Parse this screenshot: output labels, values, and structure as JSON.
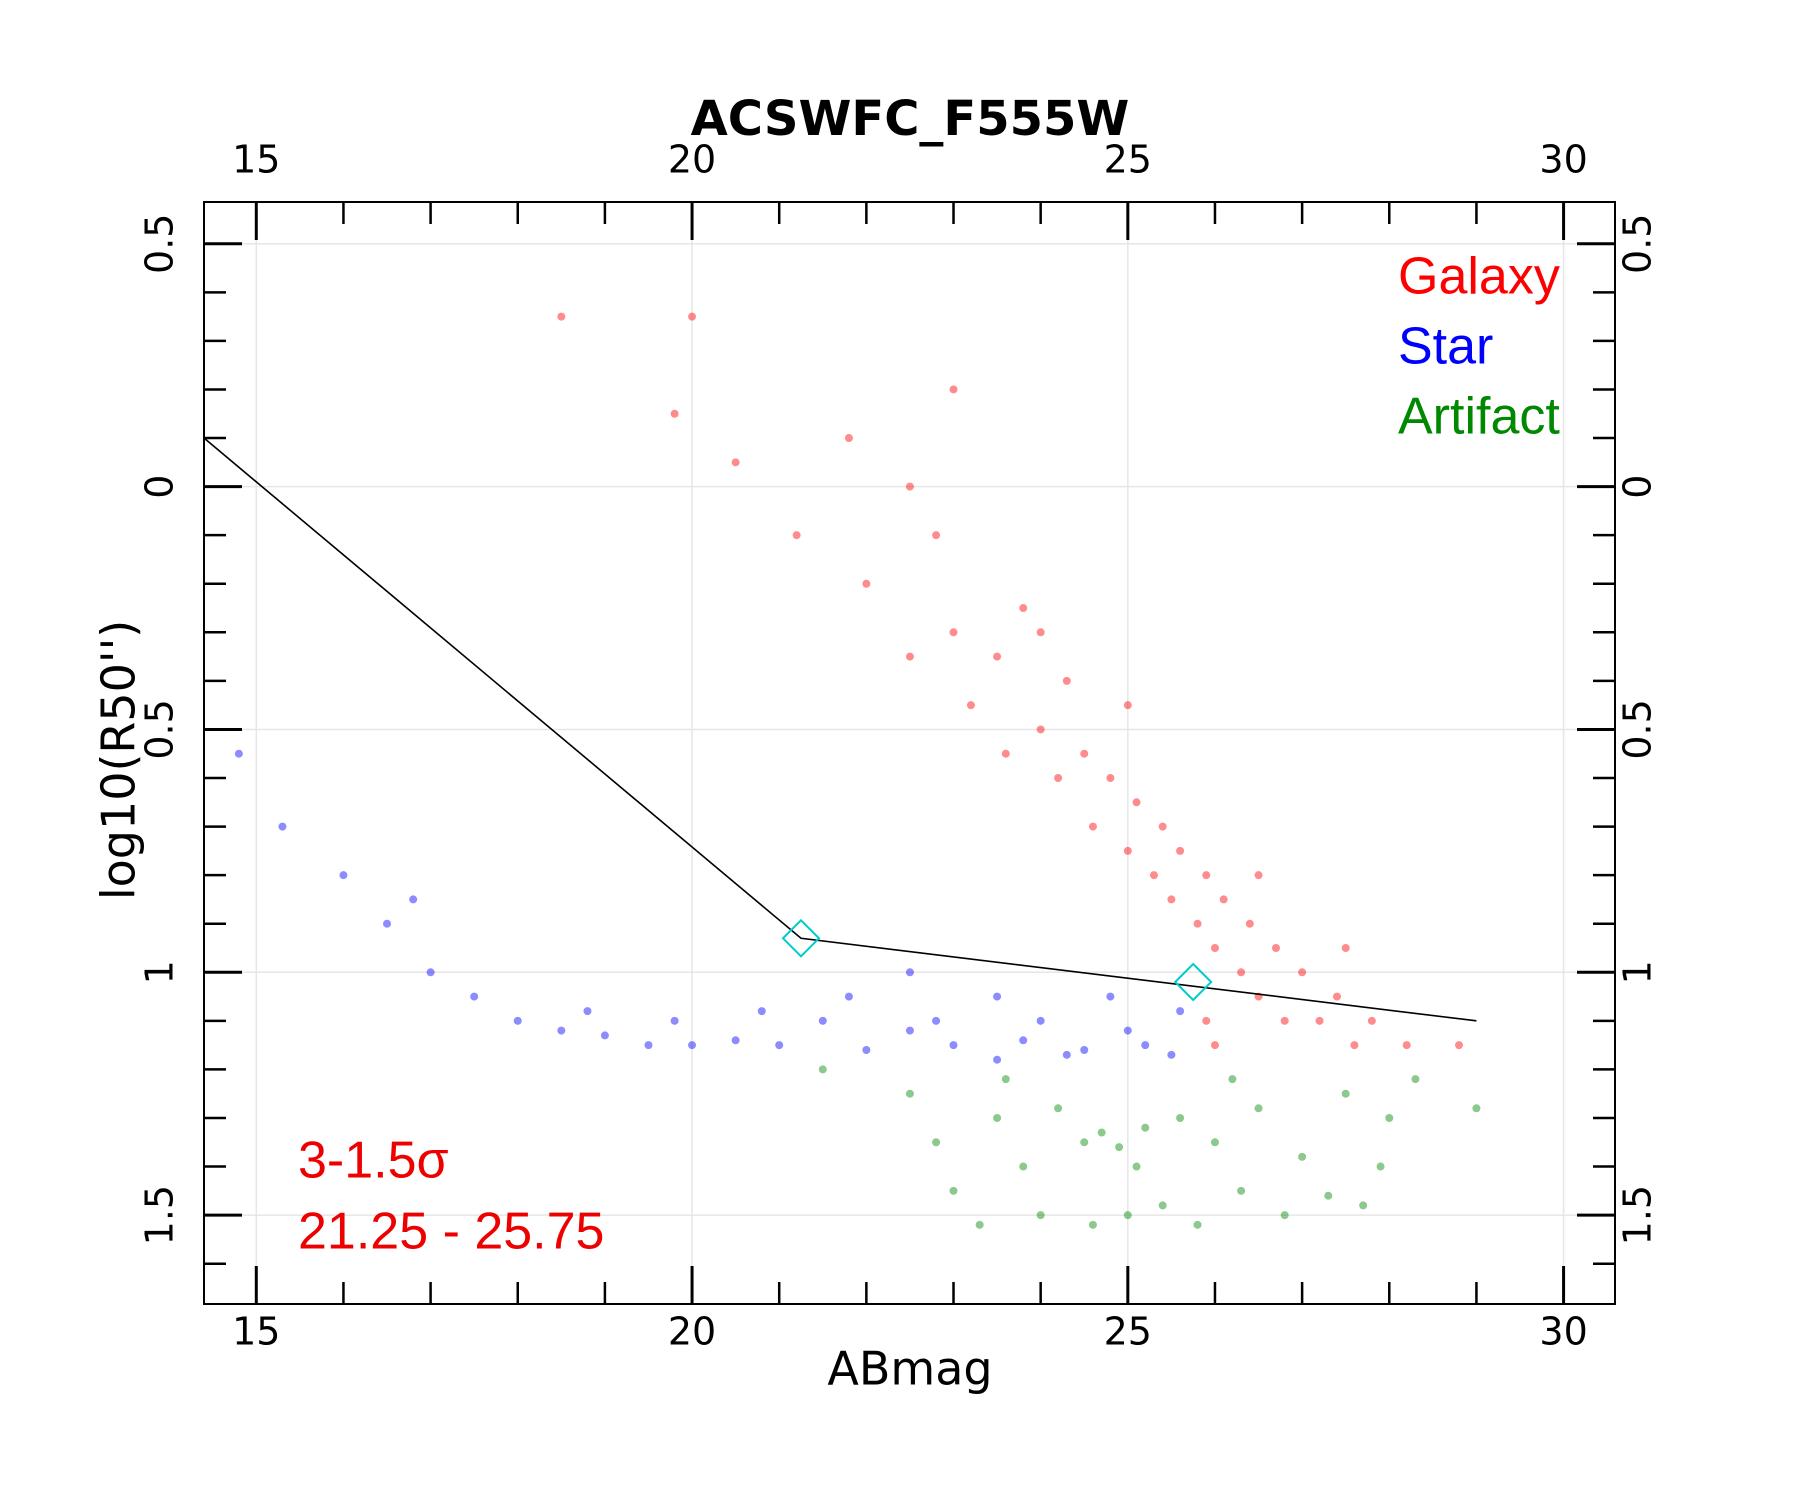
{
  "chart_data": {
    "type": "scatter",
    "title": "ACSWFC_F555W",
    "x_label": "ABmag",
    "y_label": "log10(R50'')",
    "xlim": [
      14.4,
      30.59
    ],
    "ylim": [
      -1.683,
      0.586
    ],
    "xticks": [
      15,
      20,
      25,
      30
    ],
    "yticks": [
      {
        "value": 0.5,
        "label": "0.5"
      },
      0,
      {
        "value": -0.5,
        "label": "0.5"
      },
      {
        "value": -1,
        "label": "1"
      },
      {
        "value": -1.5,
        "label": "1.5"
      }
    ],
    "xticks_minor": [
      16,
      17,
      18,
      19,
      21,
      22,
      23,
      24,
      26,
      27,
      28,
      29
    ],
    "yticks_minor": [
      0.4,
      0.3,
      0.2,
      0.1,
      -0.1,
      -0.2,
      -0.3,
      -0.4,
      -0.6,
      -0.7,
      -0.8,
      -0.9,
      -1.1,
      -1.2,
      -1.3,
      -1.4,
      -1.6
    ],
    "grid": true,
    "legend_position": "upper right",
    "series": [
      {
        "name": "Galaxy",
        "color": "#ff0000",
        "x": [
          18.5,
          19.8,
          20.5,
          21.2,
          21.8,
          22.0,
          22.5,
          22.8,
          23.0,
          23.2,
          23.5,
          23.6,
          23.8,
          24.0,
          24.2,
          24.3,
          24.5,
          24.6,
          24.8,
          25.0,
          25.1,
          25.3,
          25.4,
          25.5,
          25.6,
          25.8,
          25.9,
          26.0,
          26.1,
          26.3,
          26.4,
          26.5,
          26.7,
          26.8,
          27.0,
          27.2,
          27.4,
          27.6,
          27.8,
          28.2,
          28.8,
          26.0,
          25.9,
          24.0,
          22.5,
          23.0,
          25.0,
          26.5,
          27.5,
          20.0
        ],
        "y": [
          0.35,
          0.15,
          0.05,
          -0.1,
          0.1,
          -0.2,
          -0.35,
          -0.1,
          -0.3,
          -0.45,
          -0.35,
          -0.55,
          -0.25,
          -0.5,
          -0.6,
          -0.4,
          -0.55,
          -0.7,
          -0.6,
          -0.75,
          -0.65,
          -0.8,
          -0.7,
          -0.85,
          -0.75,
          -0.9,
          -0.8,
          -0.95,
          -0.85,
          -1.0,
          -0.9,
          -1.05,
          -0.95,
          -1.1,
          -1.0,
          -1.1,
          -1.05,
          -1.15,
          -1.1,
          -1.15,
          -1.15,
          -1.15,
          -1.1,
          -0.3,
          0.0,
          0.2,
          -0.45,
          -0.8,
          -0.95,
          0.35
        ]
      },
      {
        "name": "Star",
        "color": "#0000ff",
        "x": [
          14.8,
          15.3,
          16.0,
          16.5,
          17.0,
          17.5,
          18.0,
          18.5,
          19.0,
          19.5,
          20.0,
          20.5,
          21.0,
          21.5,
          22.0,
          22.5,
          23.0,
          23.5,
          24.0,
          24.5,
          25.0,
          25.5,
          22.5,
          23.5,
          24.8,
          25.6,
          21.8,
          20.8,
          19.8,
          18.8,
          23.8,
          24.3,
          25.2,
          22.8,
          16.8
        ],
        "y": [
          -0.55,
          -0.7,
          -0.8,
          -0.9,
          -1.0,
          -1.05,
          -1.1,
          -1.12,
          -1.13,
          -1.15,
          -1.15,
          -1.14,
          -1.15,
          -1.1,
          -1.16,
          -1.12,
          -1.15,
          -1.18,
          -1.1,
          -1.16,
          -1.12,
          -1.17,
          -1.0,
          -1.05,
          -1.05,
          -1.08,
          -1.05,
          -1.08,
          -1.1,
          -1.08,
          -1.14,
          -1.17,
          -1.15,
          -1.1,
          -0.85
        ]
      },
      {
        "name": "Artifact",
        "color": "#008800",
        "x": [
          21.5,
          22.5,
          22.8,
          23.0,
          23.3,
          23.5,
          23.8,
          24.0,
          24.2,
          24.5,
          24.7,
          24.9,
          25.0,
          25.2,
          25.4,
          25.6,
          25.8,
          26.0,
          26.3,
          26.5,
          26.8,
          27.0,
          27.3,
          27.5,
          27.7,
          28.0,
          28.3,
          29.0,
          24.6,
          23.6,
          26.2,
          25.1,
          27.9
        ],
        "y": [
          -1.2,
          -1.25,
          -1.35,
          -1.45,
          -1.52,
          -1.3,
          -1.4,
          -1.5,
          -1.28,
          -1.35,
          -1.33,
          -1.36,
          -1.5,
          -1.32,
          -1.48,
          -1.3,
          -1.52,
          -1.35,
          -1.45,
          -1.28,
          -1.5,
          -1.38,
          -1.46,
          -1.25,
          -1.48,
          -1.3,
          -1.22,
          -1.28,
          -1.52,
          -1.22,
          -1.22,
          -1.4,
          -1.4
        ]
      }
    ],
    "threshold_line": {
      "color": "#000000",
      "x": [
        14.4,
        21.25,
        29.0
      ],
      "y": [
        0.1,
        -0.93,
        -1.1
      ]
    },
    "markers": {
      "color": "#00cccc",
      "x": [
        21.25,
        25.75
      ],
      "y": [
        -0.93,
        -1.02
      ]
    },
    "annotations": [
      {
        "text": "3-1.5σ",
        "color": "#ee0000"
      },
      {
        "text": "21.25 - 25.75",
        "color": "#ee0000"
      }
    ]
  }
}
